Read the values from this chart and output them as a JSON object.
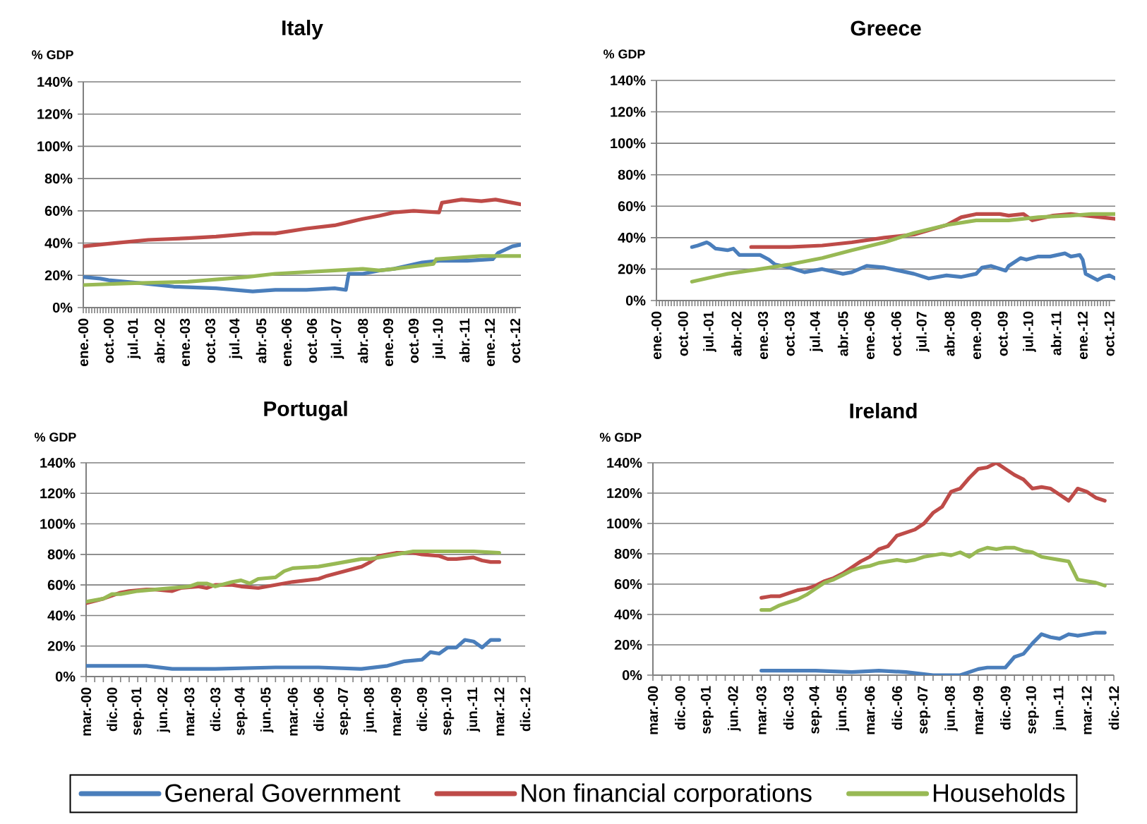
{
  "chart_data": [
    {
      "type": "line",
      "title": "Italy",
      "ylabel": "% GDP",
      "grid": "y",
      "xlim": [
        "2000-01",
        "2012-12"
      ],
      "ylim": [
        0,
        140
      ],
      "xticks": [
        {
          "value": "2000-01",
          "label": "ene.-00"
        },
        {
          "value": "2000-10",
          "label": "oct.-00"
        },
        {
          "value": "2001-07",
          "label": "jul.-01"
        },
        {
          "value": "2002-04",
          "label": "abr.-02"
        },
        {
          "value": "2003-01",
          "label": "ene.-03"
        },
        {
          "value": "2003-10",
          "label": "oct.-03"
        },
        {
          "value": "2004-07",
          "label": "jul.-04"
        },
        {
          "value": "2005-04",
          "label": "abr.-05"
        },
        {
          "value": "2006-01",
          "label": "ene.-06"
        },
        {
          "value": "2006-10",
          "label": "oct.-06"
        },
        {
          "value": "2007-07",
          "label": "jul.-07"
        },
        {
          "value": "2008-04",
          "label": "abr.-08"
        },
        {
          "value": "2009-01",
          "label": "ene.-09"
        },
        {
          "value": "2009-10",
          "label": "oct.-09"
        },
        {
          "value": "2010-07",
          "label": "jul.-10"
        },
        {
          "value": "2011-04",
          "label": "abr.-11"
        },
        {
          "value": "2012-01",
          "label": "ene.-12"
        },
        {
          "value": "2012-10",
          "label": "oct.-12"
        }
      ],
      "yticks": [
        {
          "value": 0,
          "label": "0%"
        },
        {
          "value": 20,
          "label": "20%"
        },
        {
          "value": 40,
          "label": "40%"
        },
        {
          "value": 60,
          "label": "60%"
        },
        {
          "value": 80,
          "label": "80%"
        },
        {
          "value": 100,
          "label": "100%"
        },
        {
          "value": 120,
          "label": "120%"
        },
        {
          "value": 140,
          "label": "140%"
        }
      ],
      "series": [
        {
          "color": "#4a7ebb",
          "x": [
            "2000-01",
            "2000-07",
            "2000-10",
            "2001-10",
            "2002-09",
            "2003-12",
            "2005-01",
            "2005-09",
            "2006-08",
            "2007-06",
            "2007-10",
            "2007-11",
            "2008-04",
            "2008-10",
            "2009-03",
            "2010-01",
            "2010-07",
            "2011-05",
            "2012-02",
            "2012-04",
            "2012-09",
            "2012-12"
          ],
          "values": [
            19,
            18,
            17,
            15,
            13,
            12,
            10,
            11,
            11,
            12,
            11,
            21,
            21,
            23,
            24,
            28,
            29,
            29,
            30,
            34,
            38,
            39
          ]
        },
        {
          "color": "#be4b48",
          "x": [
            "2000-01",
            "2000-12",
            "2001-12",
            "2003-02",
            "2003-12",
            "2005-01",
            "2005-09",
            "2006-08",
            "2007-06",
            "2007-11",
            "2008-04",
            "2008-10",
            "2009-03",
            "2009-10",
            "2010-07",
            "2010-08",
            "2011-03",
            "2011-10",
            "2012-03",
            "2012-09",
            "2012-12"
          ],
          "values": [
            38,
            40,
            42,
            43,
            44,
            46,
            46,
            49,
            51,
            53,
            55,
            57,
            59,
            60,
            59,
            65,
            67,
            66,
            67,
            65,
            64
          ]
        },
        {
          "color": "#98b954",
          "x": [
            "2000-01",
            "2001-05",
            "2003-02",
            "2004-11",
            "2005-09",
            "2007-06",
            "2008-04",
            "2008-10",
            "2009-03",
            "2010-05",
            "2010-06",
            "2011-10",
            "2012-12"
          ],
          "values": [
            14,
            15,
            16,
            19,
            21,
            23,
            24,
            23,
            24,
            27,
            30,
            32,
            32
          ]
        }
      ]
    },
    {
      "type": "line",
      "title": "Greece",
      "ylabel": "% GDP",
      "grid": "y",
      "xlim": [
        "2000-01",
        "2012-12"
      ],
      "ylim": [
        0,
        140
      ],
      "xticks": [
        {
          "value": "2000-01",
          "label": "ene.-00"
        },
        {
          "value": "2000-10",
          "label": "oct.-00"
        },
        {
          "value": "2001-07",
          "label": "jul.-01"
        },
        {
          "value": "2002-04",
          "label": "abr.-02"
        },
        {
          "value": "2003-01",
          "label": "ene.-03"
        },
        {
          "value": "2003-10",
          "label": "oct.-03"
        },
        {
          "value": "2004-07",
          "label": "jul.-04"
        },
        {
          "value": "2005-04",
          "label": "abr.-05"
        },
        {
          "value": "2006-01",
          "label": "ene.-06"
        },
        {
          "value": "2006-10",
          "label": "oct.-06"
        },
        {
          "value": "2007-07",
          "label": "jul.-07"
        },
        {
          "value": "2008-04",
          "label": "abr.-08"
        },
        {
          "value": "2009-01",
          "label": "ene.-09"
        },
        {
          "value": "2009-10",
          "label": "oct.-09"
        },
        {
          "value": "2010-07",
          "label": "jul.-10"
        },
        {
          "value": "2011-04",
          "label": "abr.-11"
        },
        {
          "value": "2012-01",
          "label": "ene.-12"
        },
        {
          "value": "2012-10",
          "label": "oct.-12"
        }
      ],
      "yticks": [
        {
          "value": 0,
          "label": "0%"
        },
        {
          "value": 20,
          "label": "20%"
        },
        {
          "value": 40,
          "label": "40%"
        },
        {
          "value": 60,
          "label": "60%"
        },
        {
          "value": 80,
          "label": "80%"
        },
        {
          "value": 100,
          "label": "100%"
        },
        {
          "value": 120,
          "label": "120%"
        },
        {
          "value": 140,
          "label": "140%"
        }
      ],
      "series": [
        {
          "color": "#4a7ebb",
          "x": [
            "2001-01",
            "2001-03",
            "2001-06",
            "2001-07",
            "2001-09",
            "2002-01",
            "2002-03",
            "2002-05",
            "2002-10",
            "2002-12",
            "2003-03",
            "2003-05",
            "2003-10",
            "2004-03",
            "2004-09",
            "2005-04",
            "2005-07",
            "2005-12",
            "2006-06",
            "2006-11",
            "2007-04",
            "2007-09",
            "2008-03",
            "2008-08",
            "2009-01",
            "2009-03",
            "2009-06",
            "2009-11",
            "2009-12",
            "2010-04",
            "2010-06",
            "2010-10",
            "2011-02",
            "2011-07",
            "2011-09",
            "2011-12",
            "2012-01",
            "2012-02",
            "2012-06",
            "2012-08",
            "2012-10",
            "2012-12"
          ],
          "values": [
            34,
            35,
            37,
            36,
            33,
            32,
            33,
            29,
            29,
            29,
            26,
            23,
            21,
            18,
            20,
            17,
            18,
            22,
            21,
            19,
            17,
            14,
            16,
            15,
            17,
            21,
            22,
            19,
            22,
            27,
            26,
            28,
            28,
            30,
            28,
            29,
            26,
            17,
            13,
            15,
            16,
            14
          ]
        },
        {
          "color": "#be4b48",
          "x": [
            "2002-09",
            "2003-05",
            "2003-10",
            "2004-09",
            "2005-07",
            "2006-06",
            "2007-04",
            "2008-03",
            "2008-08",
            "2009-01",
            "2009-09",
            "2009-12",
            "2010-05",
            "2010-08",
            "2011-03",
            "2011-09",
            "2012-07",
            "2012-12"
          ],
          "values": [
            34,
            34,
            34,
            35,
            37,
            40,
            42,
            48,
            53,
            55,
            55,
            54,
            55,
            51,
            54,
            55,
            53,
            52
          ]
        },
        {
          "color": "#98b954",
          "x": [
            "2001-01",
            "2002-01",
            "2002-12",
            "2003-10",
            "2004-09",
            "2005-07",
            "2006-06",
            "2007-04",
            "2008-03",
            "2009-01",
            "2009-12",
            "2010-10",
            "2011-09",
            "2012-04",
            "2012-12"
          ],
          "values": [
            12,
            17,
            20,
            23,
            27,
            32,
            37,
            43,
            48,
            51,
            51,
            53,
            54,
            55,
            55
          ]
        }
      ]
    },
    {
      "type": "line",
      "title": "Portugal",
      "ylabel": "% GDP",
      "grid": "y",
      "xlim": [
        "2000-03",
        "2012-12"
      ],
      "ylim": [
        0,
        140
      ],
      "xticks": [
        {
          "value": "2000-03",
          "label": "mar.-00"
        },
        {
          "value": "2000-12",
          "label": "dic.-00"
        },
        {
          "value": "2001-09",
          "label": "sep.-01"
        },
        {
          "value": "2002-06",
          "label": "jun.-02"
        },
        {
          "value": "2003-03",
          "label": "mar.-03"
        },
        {
          "value": "2003-12",
          "label": "dic.-03"
        },
        {
          "value": "2004-09",
          "label": "sep.-04"
        },
        {
          "value": "2005-06",
          "label": "jun.-05"
        },
        {
          "value": "2006-03",
          "label": "mar.-06"
        },
        {
          "value": "2006-12",
          "label": "dic.-06"
        },
        {
          "value": "2007-09",
          "label": "sep.-07"
        },
        {
          "value": "2008-06",
          "label": "jun.-08"
        },
        {
          "value": "2009-03",
          "label": "mar.-09"
        },
        {
          "value": "2009-12",
          "label": "dic.-09"
        },
        {
          "value": "2010-09",
          "label": "sep.-10"
        },
        {
          "value": "2011-06",
          "label": "jun.-11"
        },
        {
          "value": "2012-03",
          "label": "mar.-12"
        },
        {
          "value": "2012-12",
          "label": "dic.-12"
        }
      ],
      "yticks": [
        {
          "value": 0,
          "label": "0%"
        },
        {
          "value": 20,
          "label": "20%"
        },
        {
          "value": 40,
          "label": "40%"
        },
        {
          "value": 60,
          "label": "60%"
        },
        {
          "value": 80,
          "label": "80%"
        },
        {
          "value": 100,
          "label": "100%"
        },
        {
          "value": 120,
          "label": "120%"
        },
        {
          "value": 140,
          "label": "140%"
        }
      ],
      "series": [
        {
          "color": "#4a7ebb",
          "x": [
            "2000-03",
            "2001-06",
            "2001-12",
            "2002-09",
            "2003-12",
            "2005-09",
            "2006-12",
            "2008-03",
            "2008-12",
            "2009-06",
            "2009-12",
            "2010-03",
            "2010-06",
            "2010-09",
            "2010-12",
            "2011-03",
            "2011-06",
            "2011-09",
            "2011-12",
            "2012-03"
          ],
          "values": [
            7,
            7,
            7,
            5,
            5,
            6,
            6,
            5,
            7,
            10,
            11,
            16,
            15,
            19,
            19,
            24,
            23,
            19,
            24,
            24
          ]
        },
        {
          "color": "#be4b48",
          "x": [
            "2000-03",
            "2000-09",
            "2000-12",
            "2001-03",
            "2001-06",
            "2001-12",
            "2002-03",
            "2002-09",
            "2002-12",
            "2003-06",
            "2003-09",
            "2003-12",
            "2004-06",
            "2004-09",
            "2005-03",
            "2005-09",
            "2006-03",
            "2006-12",
            "2007-03",
            "2007-09",
            "2008-03",
            "2008-06",
            "2008-09",
            "2009-03",
            "2009-09",
            "2009-12",
            "2010-06",
            "2010-09",
            "2010-12",
            "2011-06",
            "2011-09",
            "2011-12",
            "2012-03"
          ],
          "values": [
            48,
            51,
            53,
            55,
            56,
            57,
            57,
            56,
            58,
            59,
            58,
            60,
            60,
            59,
            58,
            60,
            62,
            64,
            66,
            69,
            72,
            75,
            79,
            81,
            81,
            80,
            79,
            77,
            77,
            78,
            76,
            75,
            75
          ]
        },
        {
          "color": "#98b954",
          "x": [
            "2000-03",
            "2000-09",
            "2000-12",
            "2001-03",
            "2001-09",
            "2002-03",
            "2003-03",
            "2003-06",
            "2003-09",
            "2003-12",
            "2004-06",
            "2004-09",
            "2004-12",
            "2005-03",
            "2005-09",
            "2005-12",
            "2006-03",
            "2006-12",
            "2007-06",
            "2008-03",
            "2008-06",
            "2008-09",
            "2009-03",
            "2009-09",
            "2010-03",
            "2010-06",
            "2010-12",
            "2011-06",
            "2012-03"
          ],
          "values": [
            49,
            51,
            54,
            54,
            56,
            57,
            59,
            61,
            61,
            59,
            62,
            63,
            61,
            64,
            65,
            69,
            71,
            72,
            74,
            77,
            77,
            78,
            80,
            82,
            82,
            82,
            82,
            82,
            81
          ]
        }
      ]
    },
    {
      "type": "line",
      "title": "Ireland",
      "ylabel": "% GDP",
      "grid": "y",
      "legend": "bottom",
      "xlim": [
        "2000-03",
        "2012-12"
      ],
      "ylim": [
        0,
        140
      ],
      "xticks": [
        {
          "value": "2000-03",
          "label": "mar.-00"
        },
        {
          "value": "2000-12",
          "label": "dic.-00"
        },
        {
          "value": "2001-09",
          "label": "sep.-01"
        },
        {
          "value": "2002-06",
          "label": "jun.-02"
        },
        {
          "value": "2003-03",
          "label": "mar.-03"
        },
        {
          "value": "2003-12",
          "label": "dic.-03"
        },
        {
          "value": "2004-09",
          "label": "sep.-04"
        },
        {
          "value": "2005-06",
          "label": "jun.-05"
        },
        {
          "value": "2006-03",
          "label": "mar.-06"
        },
        {
          "value": "2006-12",
          "label": "dic.-06"
        },
        {
          "value": "2007-09",
          "label": "sep.-07"
        },
        {
          "value": "2008-06",
          "label": "jun.-08"
        },
        {
          "value": "2009-03",
          "label": "mar.-09"
        },
        {
          "value": "2009-12",
          "label": "dic.-09"
        },
        {
          "value": "2010-09",
          "label": "sep.-10"
        },
        {
          "value": "2011-06",
          "label": "jun.-11"
        },
        {
          "value": "2012-03",
          "label": "mar.-12"
        },
        {
          "value": "2012-12",
          "label": "dic.-12"
        }
      ],
      "yticks": [
        {
          "value": 0,
          "label": "0%"
        },
        {
          "value": 20,
          "label": "20%"
        },
        {
          "value": 40,
          "label": "40%"
        },
        {
          "value": 60,
          "label": "60%"
        },
        {
          "value": 80,
          "label": "80%"
        },
        {
          "value": 100,
          "label": "100%"
        },
        {
          "value": 120,
          "label": "120%"
        },
        {
          "value": 140,
          "label": "140%"
        }
      ],
      "x": [
        "2003-03",
        "2003-06",
        "2003-09",
        "2003-12",
        "2004-03",
        "2004-06",
        "2004-09",
        "2004-12",
        "2005-03",
        "2005-06",
        "2005-09",
        "2005-12",
        "2006-03",
        "2006-06",
        "2006-09",
        "2006-12",
        "2007-03",
        "2007-06",
        "2007-09",
        "2007-12",
        "2008-03",
        "2008-06",
        "2008-09",
        "2008-12",
        "2009-03",
        "2009-06",
        "2009-09",
        "2009-12",
        "2010-03",
        "2010-06",
        "2010-09",
        "2010-12",
        "2011-03",
        "2011-06",
        "2011-09",
        "2011-12",
        "2012-03",
        "2012-06",
        "2012-09"
      ],
      "series": [
        {
          "name": "General Government",
          "color": "#4a7ebb",
          "x": [
            "2003-03",
            "2003-12",
            "2004-09",
            "2005-09",
            "2006-06",
            "2007-03",
            "2007-12",
            "2008-03",
            "2008-09",
            "2008-12",
            "2009-03",
            "2009-06",
            "2009-12",
            "2010-03",
            "2010-06",
            "2010-09",
            "2010-12",
            "2011-03",
            "2011-06",
            "2011-09",
            "2011-12",
            "2012-03",
            "2012-06",
            "2012-09"
          ],
          "values": [
            3,
            3,
            3,
            2,
            3,
            2,
            0,
            0,
            0,
            2,
            4,
            5,
            5,
            12,
            14,
            21,
            27,
            25,
            24,
            27,
            26,
            27,
            28,
            28
          ]
        },
        {
          "name": "Non financial corporations",
          "color": "#be4b48",
          "values": [
            51,
            52,
            52,
            54,
            56,
            57,
            59,
            62,
            64,
            67,
            71,
            75,
            78,
            83,
            85,
            92,
            94,
            96,
            100,
            107,
            111,
            121,
            123,
            130,
            136,
            137,
            140,
            136,
            132,
            129,
            123,
            124,
            123,
            119,
            115,
            123,
            121,
            117,
            115
          ]
        },
        {
          "name": "Households",
          "color": "#98b954",
          "values": [
            43,
            43,
            46,
            48,
            50,
            53,
            57,
            61,
            63,
            66,
            69,
            71,
            72,
            74,
            75,
            76,
            75,
            76,
            78,
            79,
            80,
            79,
            81,
            78,
            82,
            84,
            83,
            84,
            84,
            82,
            81,
            78,
            77,
            76,
            75,
            63,
            62,
            61,
            59
          ]
        }
      ]
    }
  ]
}
